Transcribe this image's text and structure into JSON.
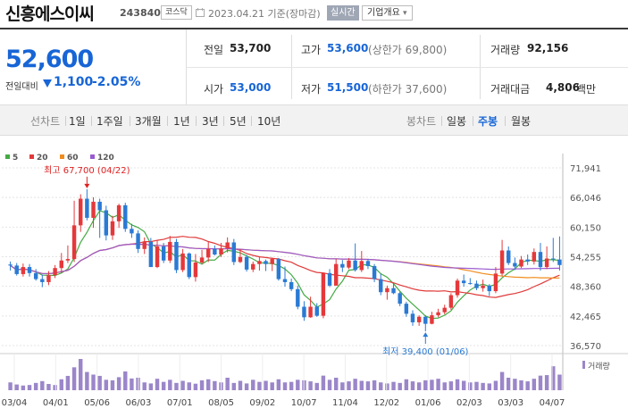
{
  "header": {
    "stock_name": "신흥에스이씨",
    "stock_code": "243840",
    "market": "코스닥",
    "base_date": "2023.04.21 기준(장마감)",
    "realtime_label": "실시간",
    "overview_label": "기업개요",
    "overview_chevron": "▾"
  },
  "price": {
    "current": "52,600",
    "diff_label": "전일대비",
    "diff_value": "1,100",
    "diff_rate": "-2.05%",
    "prev_close_label": "전일",
    "prev_close": "53,700",
    "open_label": "시가",
    "open": "53,000",
    "high_label": "고가",
    "high": "53,600",
    "upper_limit": "(상한가 69,800)",
    "low_label": "저가",
    "low": "51,500",
    "lower_limit": "(하한가 37,600)",
    "volume_label": "거래량",
    "volume": "92,156",
    "amount_label": "거래대금",
    "amount": "4,806",
    "amount_unit": "백만"
  },
  "tabs": {
    "line_label": "선차트",
    "line_periods": [
      "1일",
      "1주일",
      "3개월",
      "1년",
      "3년",
      "5년",
      "10년"
    ],
    "candle_label": "봉차트",
    "candle_periods": [
      "일봉",
      "주봉",
      "월봉"
    ],
    "active_candle": "주봉"
  },
  "chart_data": {
    "type": "candlestick",
    "legend": [
      {
        "name": "5",
        "color": "#44aa44"
      },
      {
        "name": "20",
        "color": "#e03a3a"
      },
      {
        "name": "60",
        "color": "#f08c1e"
      },
      {
        "name": "120",
        "color": "#9a5bd0"
      }
    ],
    "y_ticks": [
      "71,941",
      "66,046",
      "60,150",
      "54,255",
      "48,360",
      "42,465",
      "36,570"
    ],
    "x_ticks": [
      "03/04",
      "04/01",
      "05/06",
      "06/03",
      "07/01",
      "08/05",
      "09/02",
      "10/07",
      "11/04",
      "12/02",
      "01/06",
      "02/03",
      "03/03",
      "04/07"
    ],
    "ylim": [
      36570,
      71941
    ],
    "high_annotation": "최고 67,700 (04/22)",
    "low_annotation": "최저 39,400 (01/06)",
    "volume_label": "거래량",
    "candles": [
      [
        52700,
        52500,
        53300,
        51500
      ],
      [
        52500,
        50800,
        53000,
        50500
      ],
      [
        50800,
        52200,
        52900,
        50300
      ],
      [
        52200,
        51000,
        52800,
        50300
      ],
      [
        51000,
        49800,
        51800,
        49500
      ],
      [
        49800,
        49200,
        50700,
        48200
      ],
      [
        49200,
        50600,
        51400,
        48600
      ],
      [
        50600,
        52000,
        52600,
        50000
      ],
      [
        52000,
        53500,
        55000,
        51000
      ],
      [
        53500,
        53800,
        56500,
        53000
      ],
      [
        53800,
        60500,
        65400,
        53200
      ],
      [
        60500,
        65800,
        66700,
        59200
      ],
      [
        65800,
        62000,
        67700,
        61500
      ],
      [
        62000,
        65200,
        66100,
        60000
      ],
      [
        65200,
        63500,
        65800,
        58000
      ],
      [
        63500,
        58500,
        64400,
        57500
      ],
      [
        58500,
        61300,
        62400,
        57600
      ],
      [
        61300,
        64500,
        64800,
        60000
      ],
      [
        64500,
        59800,
        65000,
        59200
      ],
      [
        59800,
        58900,
        60800,
        58000
      ],
      [
        58900,
        55800,
        59500,
        55000
      ],
      [
        55800,
        57200,
        58100,
        54800
      ],
      [
        57200,
        52200,
        58000,
        52200
      ],
      [
        52200,
        56300,
        57500,
        52000
      ],
      [
        56300,
        53500,
        57000,
        53000
      ],
      [
        53500,
        57200,
        58400,
        53000
      ],
      [
        57200,
        51600,
        57800,
        51000
      ],
      [
        51600,
        54900,
        55800,
        51200
      ],
      [
        54900,
        50200,
        55100,
        49800
      ],
      [
        50200,
        53100,
        54800,
        49300
      ],
      [
        53100,
        54100,
        55600,
        52800
      ],
      [
        54100,
        55800,
        57300,
        53200
      ],
      [
        55800,
        54700,
        56500,
        54500
      ],
      [
        54700,
        55900,
        57000,
        54200
      ],
      [
        55900,
        57100,
        58100,
        55100
      ],
      [
        57100,
        53200,
        57800,
        52600
      ],
      [
        53200,
        54200,
        55800,
        53000
      ],
      [
        54200,
        51700,
        54600,
        51300
      ],
      [
        51700,
        52800,
        53300,
        51200
      ],
      [
        52800,
        53400,
        54200,
        51500
      ],
      [
        53400,
        52800,
        53700,
        51400
      ],
      [
        52800,
        53800,
        54100,
        51400
      ],
      [
        53800,
        49800,
        54000,
        49500
      ],
      [
        49800,
        49200,
        52300,
        48300
      ],
      [
        49200,
        47800,
        49900,
        47400
      ],
      [
        47800,
        44300,
        48500,
        43800
      ],
      [
        44300,
        42200,
        45400,
        41500
      ],
      [
        42200,
        44300,
        46300,
        42100
      ],
      [
        44300,
        42500,
        45000,
        42300
      ],
      [
        42500,
        51000,
        51000,
        42000
      ],
      [
        51000,
        48500,
        51800,
        48200
      ],
      [
        48500,
        52800,
        53800,
        48500
      ],
      [
        52800,
        52100,
        53600,
        51200
      ],
      [
        52100,
        53500,
        54000,
        51800
      ],
      [
        53500,
        51600,
        56900,
        51300
      ],
      [
        51600,
        53400,
        55400,
        51200
      ],
      [
        53400,
        52400,
        53800,
        51800
      ],
      [
        52400,
        49800,
        52800,
        49200
      ],
      [
        49800,
        47200,
        50900,
        46600
      ],
      [
        47200,
        48000,
        48500,
        45700
      ],
      [
        48000,
        47000,
        48900,
        46800
      ],
      [
        47000,
        44900,
        47300,
        44400
      ],
      [
        44900,
        42900,
        45300,
        42300
      ],
      [
        42900,
        41200,
        43600,
        40500
      ],
      [
        41200,
        42300,
        42600,
        40500
      ],
      [
        42300,
        40900,
        42600,
        39400
      ],
      [
        40900,
        42600,
        43300,
        40800
      ],
      [
        42600,
        43200,
        43900,
        42200
      ],
      [
        43200,
        44100,
        44700,
        42800
      ],
      [
        44100,
        46600,
        47000,
        43700
      ],
      [
        46600,
        49500,
        49900,
        46100
      ],
      [
        49500,
        49000,
        50700,
        48300
      ],
      [
        49000,
        48900,
        50000,
        48700
      ],
      [
        48900,
        48000,
        49500,
        47600
      ],
      [
        48000,
        48500,
        49700,
        47300
      ],
      [
        48500,
        47400,
        48800,
        46400
      ],
      [
        47400,
        50900,
        52200,
        47000
      ],
      [
        50900,
        55500,
        57600,
        50400
      ],
      [
        55500,
        53000,
        56300,
        52600
      ],
      [
        53000,
        52300,
        54100,
        51600
      ],
      [
        52300,
        53700,
        54400,
        52000
      ],
      [
        53700,
        53300,
        54700,
        52600
      ],
      [
        53300,
        55200,
        55900,
        52700
      ],
      [
        55200,
        52200,
        57000,
        51500
      ],
      [
        52200,
        53900,
        56300,
        51800
      ],
      [
        53900,
        53700,
        58000,
        53200
      ],
      [
        53700,
        52600,
        58300,
        51500
      ]
    ],
    "volumes": [
      30,
      22,
      18,
      20,
      28,
      35,
      24,
      20,
      42,
      55,
      88,
      120,
      70,
      60,
      55,
      40,
      38,
      50,
      72,
      45,
      48,
      30,
      26,
      44,
      32,
      40,
      28,
      36,
      30,
      25,
      38,
      42,
      35,
      30,
      48,
      28,
      36,
      26,
      40,
      32,
      36,
      30,
      42,
      30,
      32,
      40,
      38,
      34,
      28,
      56,
      40,
      48,
      30,
      34,
      44,
      36,
      34,
      38,
      30,
      26,
      32,
      28,
      42,
      34,
      30,
      38,
      40,
      44,
      30,
      34,
      42,
      36,
      30,
      32,
      28,
      26,
      36,
      70,
      48,
      44,
      38,
      34,
      44,
      56,
      58,
      92,
      60
    ]
  }
}
